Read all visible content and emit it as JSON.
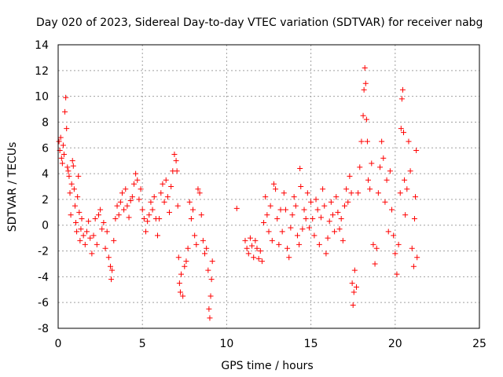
{
  "chart_data": {
    "type": "scatter",
    "title": "Day 020 of 2023, Sidereal Day-to-day VTEC variation (SDTVAR) for receiver nabg",
    "xlabel": "GPS time / hours",
    "ylabel": "SDTVAR / TECUs",
    "xlim": [
      0,
      25
    ],
    "ylim": [
      -8,
      14
    ],
    "xticks": [
      0,
      5,
      10,
      15,
      20,
      25
    ],
    "yticks": [
      -8,
      -6,
      -4,
      -2,
      0,
      2,
      4,
      6,
      8,
      10,
      12,
      14
    ],
    "grid": true,
    "marker": "+",
    "color": "#ff0000",
    "series": [
      {
        "name": "SDTVAR",
        "points": [
          [
            0.05,
            6.5
          ],
          [
            0.1,
            5.8
          ],
          [
            0.15,
            6.8
          ],
          [
            0.2,
            5.2
          ],
          [
            0.25,
            4.8
          ],
          [
            0.3,
            6.2
          ],
          [
            0.35,
            5.5
          ],
          [
            0.4,
            8.8
          ],
          [
            0.45,
            9.9
          ],
          [
            0.5,
            7.5
          ],
          [
            0.55,
            4.5
          ],
          [
            0.6,
            4.2
          ],
          [
            0.65,
            3.8
          ],
          [
            0.7,
            2.5
          ],
          [
            0.75,
            0.8
          ],
          [
            0.8,
            3.2
          ],
          [
            0.85,
            5.0
          ],
          [
            0.9,
            4.6
          ],
          [
            0.95,
            2.8
          ],
          [
            1.0,
            1.5
          ],
          [
            1.05,
            0.2
          ],
          [
            1.1,
            -0.5
          ],
          [
            1.15,
            2.2
          ],
          [
            1.2,
            3.8
          ],
          [
            1.25,
            1.0
          ],
          [
            1.3,
            -1.2
          ],
          [
            1.35,
            -0.3
          ],
          [
            1.4,
            0.5
          ],
          [
            1.5,
            -0.8
          ],
          [
            1.6,
            -1.5
          ],
          [
            1.7,
            -0.5
          ],
          [
            1.8,
            0.3
          ],
          [
            1.9,
            -1.0
          ],
          [
            2.0,
            -2.2
          ],
          [
            2.1,
            -0.8
          ],
          [
            2.2,
            0.5
          ],
          [
            2.3,
            -1.5
          ],
          [
            2.4,
            0.8
          ],
          [
            2.5,
            1.2
          ],
          [
            2.6,
            -0.3
          ],
          [
            2.7,
            0.2
          ],
          [
            2.8,
            -1.8
          ],
          [
            2.9,
            -0.5
          ],
          [
            3.0,
            -2.5
          ],
          [
            3.1,
            -3.2
          ],
          [
            3.15,
            -4.2
          ],
          [
            3.2,
            -3.5
          ],
          [
            3.3,
            -1.2
          ],
          [
            3.4,
            0.5
          ],
          [
            3.5,
            1.5
          ],
          [
            3.6,
            0.8
          ],
          [
            3.7,
            1.8
          ],
          [
            3.8,
            2.5
          ],
          [
            3.9,
            1.2
          ],
          [
            4.0,
            2.8
          ],
          [
            4.1,
            1.5
          ],
          [
            4.2,
            0.6
          ],
          [
            4.3,
            1.9
          ],
          [
            4.4,
            2.2
          ],
          [
            4.5,
            3.2
          ],
          [
            4.6,
            4.0
          ],
          [
            4.7,
            3.5
          ],
          [
            4.8,
            2.0
          ],
          [
            4.9,
            2.8
          ],
          [
            5.0,
            1.2
          ],
          [
            5.1,
            0.5
          ],
          [
            5.2,
            -0.5
          ],
          [
            5.3,
            0.3
          ],
          [
            5.4,
            0.8
          ],
          [
            5.5,
            1.8
          ],
          [
            5.6,
            1.2
          ],
          [
            5.7,
            2.2
          ],
          [
            5.8,
            0.5
          ],
          [
            5.9,
            -0.8
          ],
          [
            6.0,
            0.5
          ],
          [
            6.1,
            2.5
          ],
          [
            6.2,
            3.2
          ],
          [
            6.3,
            1.8
          ],
          [
            6.4,
            3.5
          ],
          [
            6.5,
            2.2
          ],
          [
            6.6,
            1.0
          ],
          [
            6.7,
            3.0
          ],
          [
            6.8,
            4.2
          ],
          [
            6.9,
            5.5
          ],
          [
            7.0,
            5.0
          ],
          [
            7.05,
            4.2
          ],
          [
            7.1,
            1.5
          ],
          [
            7.15,
            -2.5
          ],
          [
            7.2,
            -4.5
          ],
          [
            7.25,
            -5.2
          ],
          [
            7.3,
            -3.8
          ],
          [
            7.4,
            -5.5
          ],
          [
            7.5,
            -3.2
          ],
          [
            7.6,
            -2.8
          ],
          [
            7.7,
            -1.8
          ],
          [
            7.8,
            1.8
          ],
          [
            7.9,
            0.5
          ],
          [
            8.0,
            1.2
          ],
          [
            8.1,
            -0.8
          ],
          [
            8.2,
            -1.5
          ],
          [
            8.3,
            2.8
          ],
          [
            8.4,
            2.5
          ],
          [
            8.5,
            0.8
          ],
          [
            8.6,
            -1.2
          ],
          [
            8.7,
            -2.2
          ],
          [
            8.8,
            -1.8
          ],
          [
            8.9,
            -3.5
          ],
          [
            8.95,
            -6.5
          ],
          [
            9.0,
            -7.2
          ],
          [
            9.05,
            -5.5
          ],
          [
            9.1,
            -4.2
          ],
          [
            9.15,
            -2.8
          ],
          [
            10.6,
            1.3
          ],
          [
            11.1,
            -1.2
          ],
          [
            11.2,
            -1.8
          ],
          [
            11.3,
            -2.2
          ],
          [
            11.4,
            -1.0
          ],
          [
            11.5,
            -1.6
          ],
          [
            11.6,
            -2.5
          ],
          [
            11.7,
            -1.2
          ],
          [
            11.8,
            -1.8
          ],
          [
            11.9,
            -2.6
          ],
          [
            12.0,
            -2.0
          ],
          [
            12.1,
            -2.8
          ],
          [
            12.2,
            0.2
          ],
          [
            12.3,
            2.2
          ],
          [
            12.4,
            0.8
          ],
          [
            12.5,
            -0.5
          ],
          [
            12.6,
            1.5
          ],
          [
            12.7,
            -1.2
          ],
          [
            12.8,
            3.2
          ],
          [
            12.9,
            2.8
          ],
          [
            13.0,
            0.5
          ],
          [
            13.1,
            -1.5
          ],
          [
            13.2,
            1.2
          ],
          [
            13.3,
            -0.5
          ],
          [
            13.4,
            2.5
          ],
          [
            13.5,
            1.2
          ],
          [
            13.6,
            -1.8
          ],
          [
            13.7,
            -2.5
          ],
          [
            13.8,
            -0.2
          ],
          [
            13.9,
            0.8
          ],
          [
            14.0,
            2.2
          ],
          [
            14.1,
            1.5
          ],
          [
            14.2,
            -0.8
          ],
          [
            14.3,
            -1.5
          ],
          [
            14.35,
            4.4
          ],
          [
            14.4,
            3.0
          ],
          [
            14.5,
            -0.3
          ],
          [
            14.6,
            1.2
          ],
          [
            14.7,
            0.5
          ],
          [
            14.8,
            2.5
          ],
          [
            14.9,
            -0.2
          ],
          [
            15.0,
            1.8
          ],
          [
            15.1,
            0.5
          ],
          [
            15.2,
            -0.8
          ],
          [
            15.3,
            2.0
          ],
          [
            15.4,
            1.2
          ],
          [
            15.5,
            -1.5
          ],
          [
            15.6,
            0.6
          ],
          [
            15.7,
            2.8
          ],
          [
            15.8,
            1.5
          ],
          [
            15.9,
            -2.2
          ],
          [
            16.0,
            -1.0
          ],
          [
            16.1,
            0.3
          ],
          [
            16.2,
            1.8
          ],
          [
            16.3,
            0.8
          ],
          [
            16.4,
            -0.5
          ],
          [
            16.5,
            2.2
          ],
          [
            16.6,
            1.0
          ],
          [
            16.7,
            -0.3
          ],
          [
            16.8,
            0.5
          ],
          [
            16.9,
            -1.2
          ],
          [
            17.0,
            1.5
          ],
          [
            17.1,
            2.8
          ],
          [
            17.2,
            1.8
          ],
          [
            17.3,
            3.8
          ],
          [
            17.4,
            2.5
          ],
          [
            17.45,
            -4.5
          ],
          [
            17.5,
            -6.2
          ],
          [
            17.55,
            -5.2
          ],
          [
            17.6,
            -3.5
          ],
          [
            17.7,
            -4.8
          ],
          [
            17.8,
            2.5
          ],
          [
            17.9,
            4.5
          ],
          [
            18.0,
            6.5
          ],
          [
            18.1,
            8.5
          ],
          [
            18.15,
            10.5
          ],
          [
            18.2,
            12.2
          ],
          [
            18.25,
            11.0
          ],
          [
            18.3,
            8.2
          ],
          [
            18.35,
            6.5
          ],
          [
            18.4,
            3.5
          ],
          [
            18.5,
            2.8
          ],
          [
            18.6,
            4.8
          ],
          [
            18.7,
            -1.5
          ],
          [
            18.8,
            -3.0
          ],
          [
            18.9,
            -1.8
          ],
          [
            19.0,
            2.5
          ],
          [
            19.1,
            4.5
          ],
          [
            19.2,
            6.5
          ],
          [
            19.3,
            5.2
          ],
          [
            19.4,
            1.8
          ],
          [
            19.5,
            3.5
          ],
          [
            19.6,
            -0.5
          ],
          [
            19.7,
            4.2
          ],
          [
            19.8,
            1.2
          ],
          [
            19.9,
            -0.8
          ],
          [
            20.0,
            -2.2
          ],
          [
            20.1,
            -3.8
          ],
          [
            20.2,
            -1.5
          ],
          [
            20.3,
            2.5
          ],
          [
            20.35,
            7.5
          ],
          [
            20.4,
            9.8
          ],
          [
            20.45,
            10.5
          ],
          [
            20.5,
            7.2
          ],
          [
            20.55,
            3.5
          ],
          [
            20.6,
            0.8
          ],
          [
            20.7,
            2.8
          ],
          [
            20.8,
            6.5
          ],
          [
            20.9,
            4.2
          ],
          [
            21.0,
            -1.8
          ],
          [
            21.1,
            -3.2
          ],
          [
            21.15,
            0.5
          ],
          [
            21.2,
            2.2
          ],
          [
            21.25,
            5.8
          ],
          [
            21.3,
            -2.5
          ]
        ]
      }
    ]
  }
}
